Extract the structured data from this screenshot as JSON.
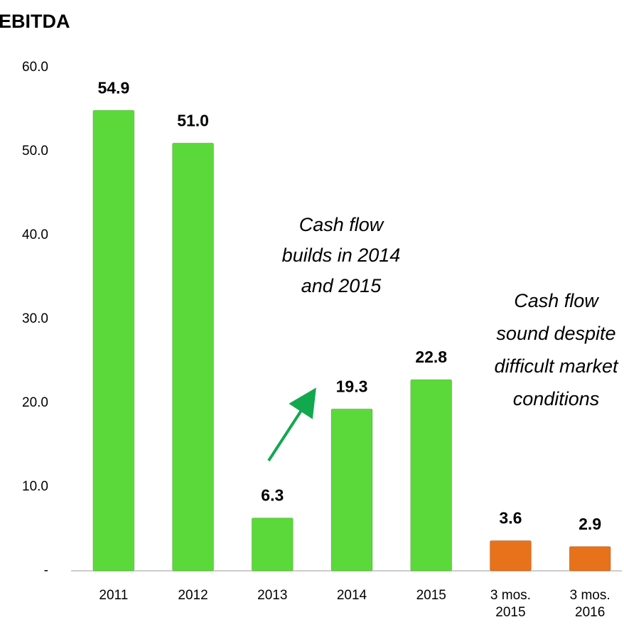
{
  "chart_data": {
    "type": "bar",
    "title": "EBITDA",
    "categories": [
      "2011",
      "2012",
      "2013",
      "2014",
      "2015",
      "3 mos. 2015",
      "3 mos. 2016"
    ],
    "values": [
      54.9,
      51.0,
      6.3,
      19.3,
      22.8,
      3.6,
      2.9
    ],
    "value_labels": [
      "54.9",
      "51.0",
      "6.3",
      "19.3",
      "22.8",
      "3.6",
      "2.9"
    ],
    "colors": [
      "#5cd93a",
      "#5cd93a",
      "#5cd93a",
      "#5cd93a",
      "#5cd93a",
      "#e8721c",
      "#e8721c"
    ],
    "ylim": [
      0,
      60
    ],
    "yticks": [
      {
        "value": 0,
        "label": "-"
      },
      {
        "value": 10,
        "label": "10.0"
      },
      {
        "value": 20,
        "label": "20.0"
      },
      {
        "value": 30,
        "label": "30.0"
      },
      {
        "value": 40,
        "label": "40.0"
      },
      {
        "value": 50,
        "label": "50.0"
      },
      {
        "value": 60,
        "label": "60.0"
      }
    ],
    "annotations": [
      "Cash flow builds in 2014 and 2015",
      "Cash flow sound despite difficult market conditions"
    ]
  }
}
